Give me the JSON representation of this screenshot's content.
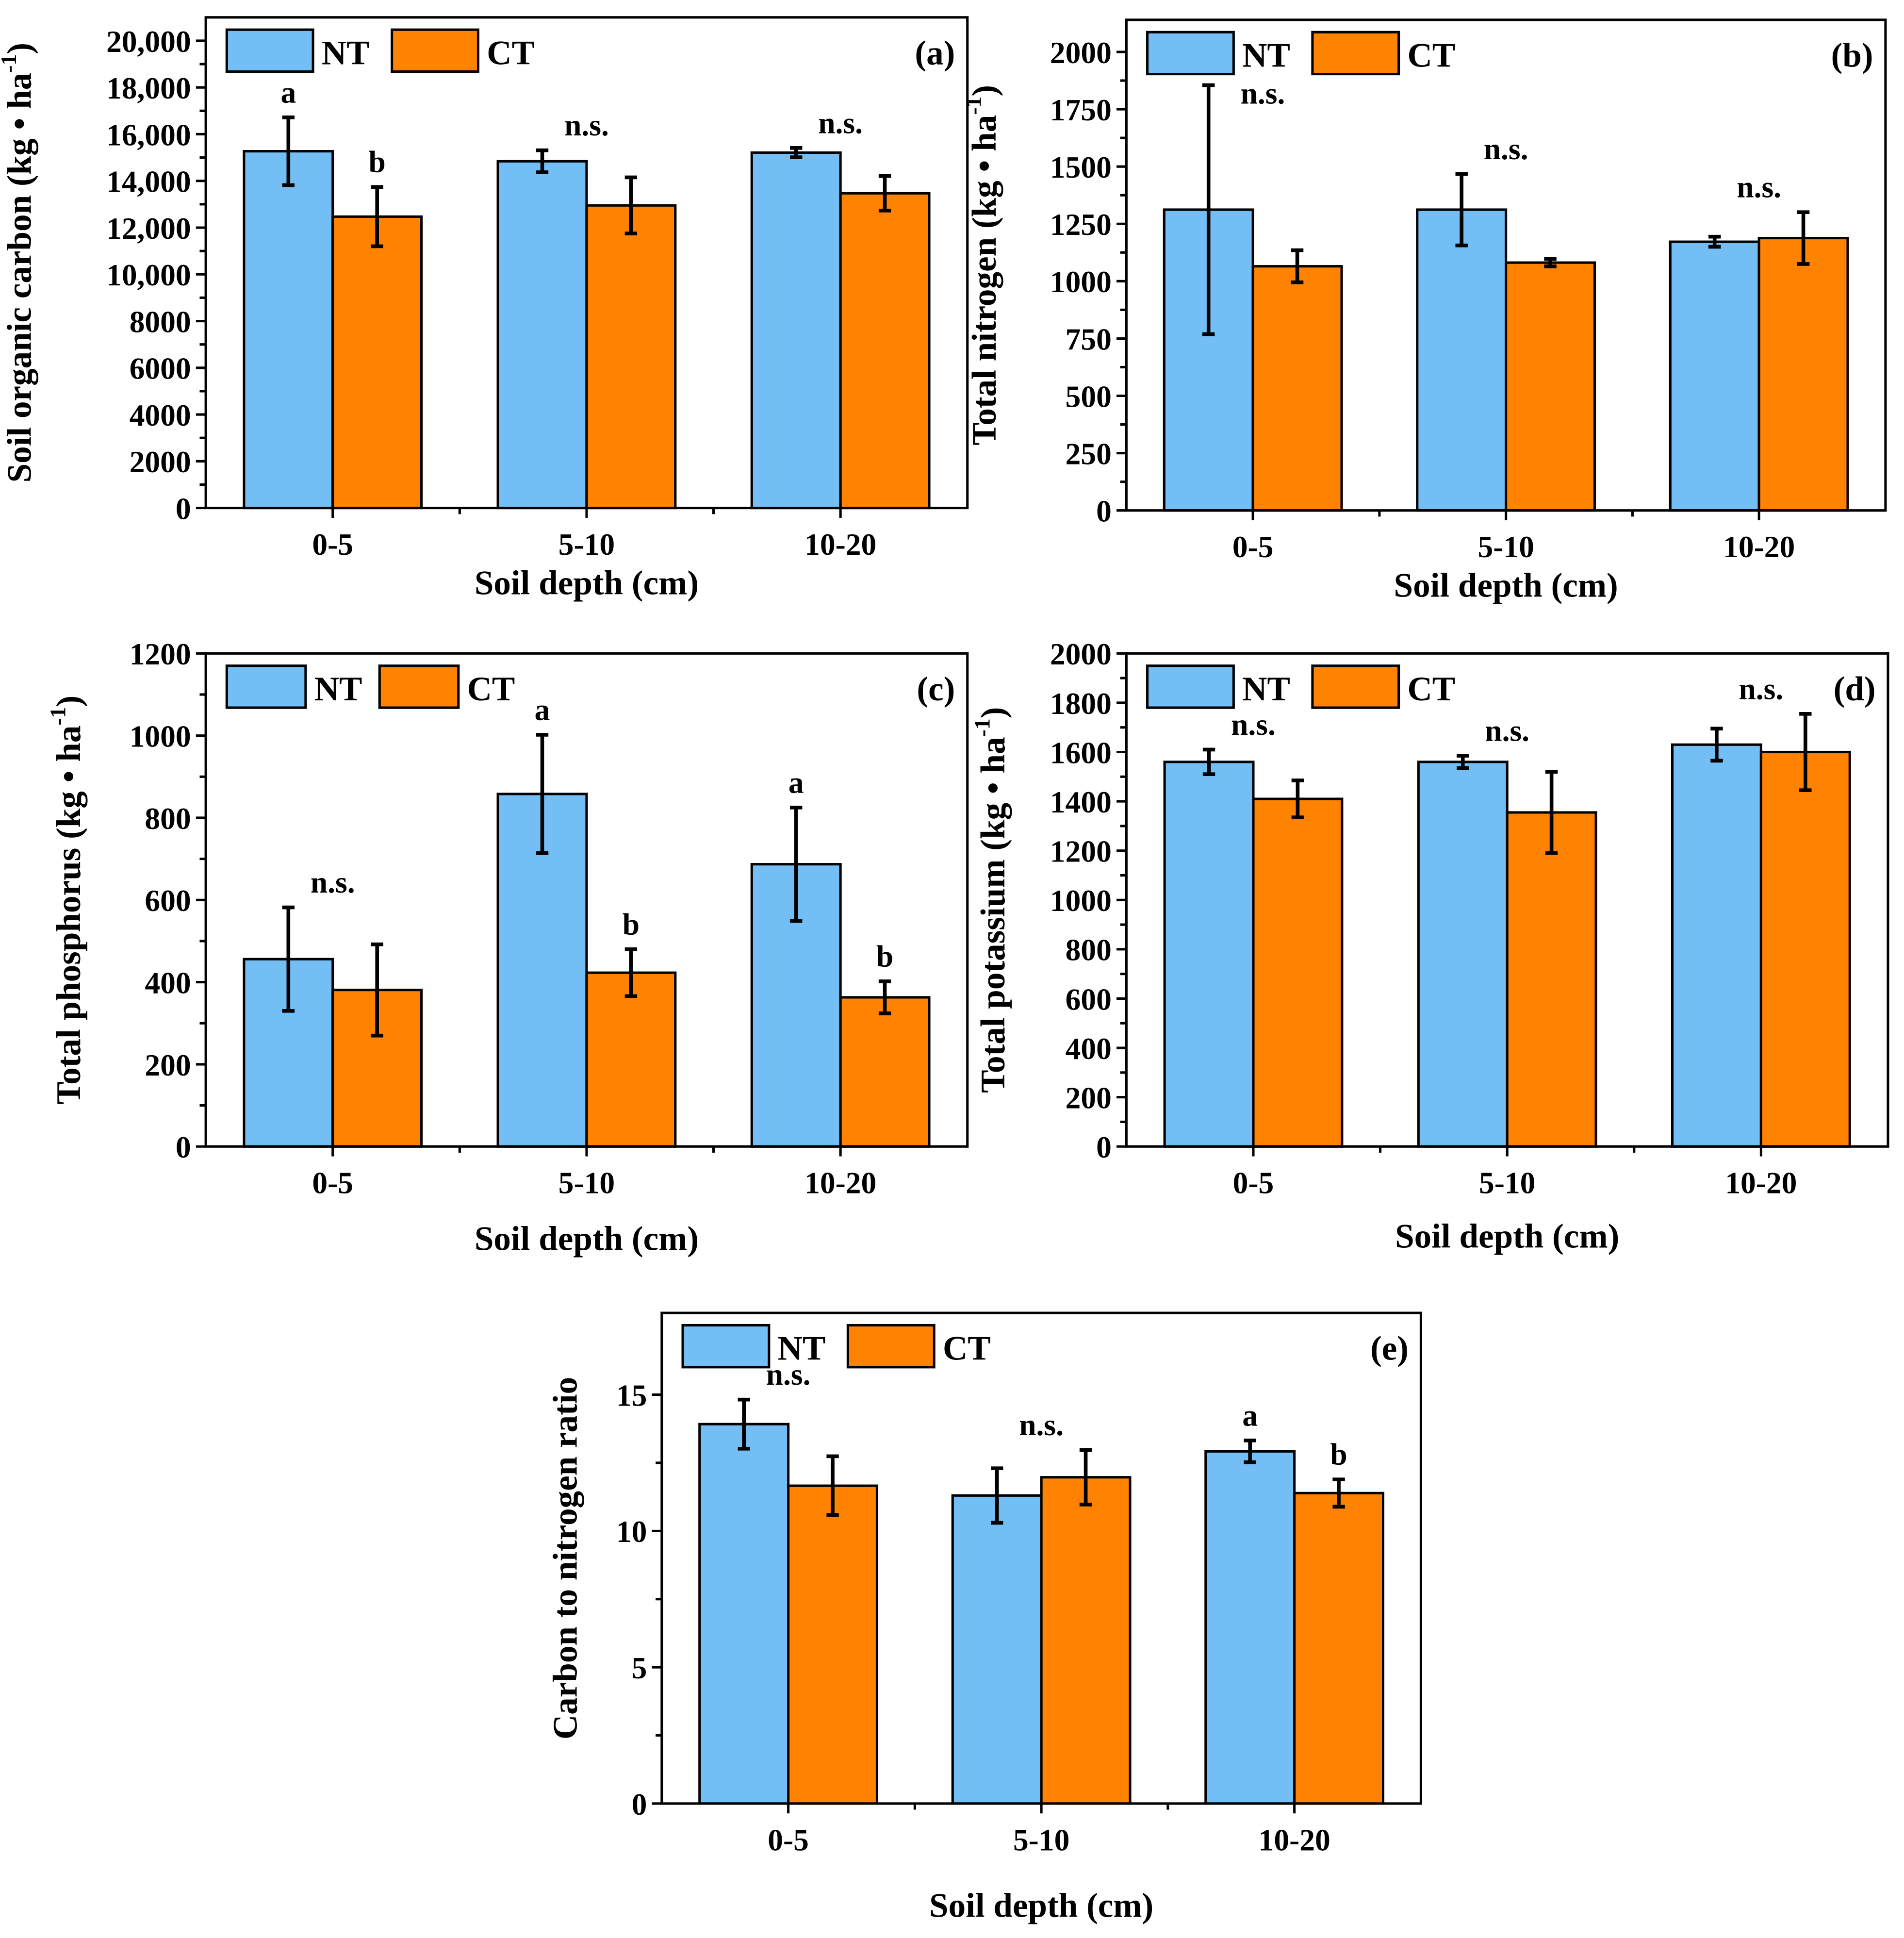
{
  "colors": {
    "NT": "#74BEF6",
    "CT": "#FF8200",
    "axis": "#000000"
  },
  "chart_data": [
    {
      "type": "bar",
      "panel_label": "(a)",
      "ylabel": {
        "main": "Soil organic carbon (kg • ha",
        "sup": "-1",
        "close": ")"
      },
      "xlabel": "Soil depth (cm)",
      "categories": [
        "0-5",
        "5-10",
        "10-20"
      ],
      "ylim": [
        0,
        21000
      ],
      "yticks": [
        "0",
        "2000",
        "4000",
        "6000",
        "8000",
        "10,000",
        "12,000",
        "14,000",
        "16,000",
        "18,000",
        "20,000"
      ],
      "legend": [
        "NT",
        "CT"
      ],
      "series": [
        {
          "name": "NT",
          "values": [
            15270,
            14840,
            15210
          ],
          "errors": [
            1450,
            470,
            200
          ]
        },
        {
          "name": "CT",
          "values": [
            12470,
            12950,
            13470
          ],
          "errors": [
            1270,
            1200,
            740
          ]
        }
      ],
      "annotations": [
        {
          "category": 0,
          "target": "NT",
          "text": "a"
        },
        {
          "category": 0,
          "target": "CT",
          "text": "b"
        },
        {
          "category": 1,
          "target": "group",
          "text": "n.s."
        },
        {
          "category": 2,
          "target": "group",
          "text": "n.s."
        }
      ]
    },
    {
      "type": "bar",
      "panel_label": "(b)",
      "ylabel": {
        "main": "Total nitrogen (kg • ha",
        "sup": "-1",
        "close": ")"
      },
      "xlabel": "Soil depth (cm)",
      "categories": [
        "0-5",
        "5-10",
        "10-20"
      ],
      "ylim": [
        0,
        2140
      ],
      "yticks": [
        "0",
        "250",
        "500",
        "750",
        "1000",
        "1250",
        "1500",
        "1750",
        "2000"
      ],
      "legend": [
        "NT",
        "CT"
      ],
      "series": [
        {
          "name": "NT",
          "values": [
            1312,
            1312,
            1172
          ],
          "errors": [
            543,
            156,
            22
          ]
        },
        {
          "name": "CT",
          "values": [
            1065,
            1081,
            1188
          ],
          "errors": [
            70,
            16,
            113
          ]
        }
      ],
      "annotations": [
        {
          "category": 0,
          "target": "group",
          "text": "n.s."
        },
        {
          "category": 1,
          "target": "group",
          "text": "n.s."
        },
        {
          "category": 2,
          "target": "group",
          "text": "n.s."
        }
      ]
    },
    {
      "type": "bar",
      "panel_label": "(c)",
      "ylabel": {
        "main": "Total phosphorus (kg • ha",
        "sup": "-1",
        "close": ")"
      },
      "xlabel": "Soil depth (cm)",
      "categories": [
        "0-5",
        "5-10",
        "10-20"
      ],
      "ylim": [
        0,
        1200
      ],
      "yticks": [
        "0",
        "200",
        "400",
        "600",
        "800",
        "1000",
        "1200"
      ],
      "legend": [
        "NT",
        "CT"
      ],
      "series": [
        {
          "name": "NT",
          "values": [
            456,
            858,
            687
          ],
          "errors": [
            126,
            144,
            138
          ]
        },
        {
          "name": "CT",
          "values": [
            381,
            423,
            363
          ],
          "errors": [
            111,
            57,
            39
          ]
        }
      ],
      "annotations": [
        {
          "category": 0,
          "target": "group",
          "text": "n.s."
        },
        {
          "category": 1,
          "target": "NT",
          "text": "a"
        },
        {
          "category": 1,
          "target": "CT",
          "text": "b"
        },
        {
          "category": 2,
          "target": "NT",
          "text": "a"
        },
        {
          "category": 2,
          "target": "CT",
          "text": "b"
        }
      ]
    },
    {
      "type": "bar",
      "panel_label": "(d)",
      "ylabel": {
        "main": "Total potassium (kg • ha",
        "sup": "-1",
        "close": ")"
      },
      "xlabel": "Soil depth (cm)",
      "categories": [
        "0-5",
        "5-10",
        "10-20"
      ],
      "ylim": [
        0,
        2000
      ],
      "yticks": [
        "0",
        "200",
        "400",
        "600",
        "800",
        "1000",
        "1200",
        "1400",
        "1600",
        "1800",
        "2000"
      ],
      "legend": [
        "NT",
        "CT"
      ],
      "series": [
        {
          "name": "NT",
          "values": [
            1560,
            1560,
            1630
          ],
          "errors": [
            50,
            25,
            65
          ]
        },
        {
          "name": "CT",
          "values": [
            1410,
            1355,
            1600
          ],
          "errors": [
            75,
            165,
            155
          ]
        }
      ],
      "annotations": [
        {
          "category": 0,
          "target": "group",
          "text": "n.s."
        },
        {
          "category": 1,
          "target": "group",
          "text": "n.s."
        },
        {
          "category": 2,
          "target": "group",
          "text": "n.s."
        }
      ]
    },
    {
      "type": "bar",
      "panel_label": "(e)",
      "ylabel": {
        "main": "Carbon to nitrogen ratio",
        "sup": "",
        "close": ""
      },
      "xlabel": "Soil depth (cm)",
      "categories": [
        "0-5",
        "5-10",
        "10-20"
      ],
      "ylim": [
        0,
        18
      ],
      "yticks": [
        "0",
        "5",
        "10",
        "15"
      ],
      "legend": [
        "NT",
        "CT"
      ],
      "series": [
        {
          "name": "NT",
          "values": [
            13.92,
            11.3,
            12.92
          ],
          "errors": [
            0.9,
            1.0,
            0.4
          ]
        },
        {
          "name": "CT",
          "values": [
            11.66,
            11.97,
            11.39
          ],
          "errors": [
            1.08,
            1.0,
            0.5
          ]
        }
      ],
      "annotations": [
        {
          "category": 0,
          "target": "group",
          "text": "n.s."
        },
        {
          "category": 1,
          "target": "group",
          "text": "n.s."
        },
        {
          "category": 2,
          "target": "NT",
          "text": "a"
        },
        {
          "category": 2,
          "target": "CT",
          "text": "b"
        }
      ]
    }
  ]
}
